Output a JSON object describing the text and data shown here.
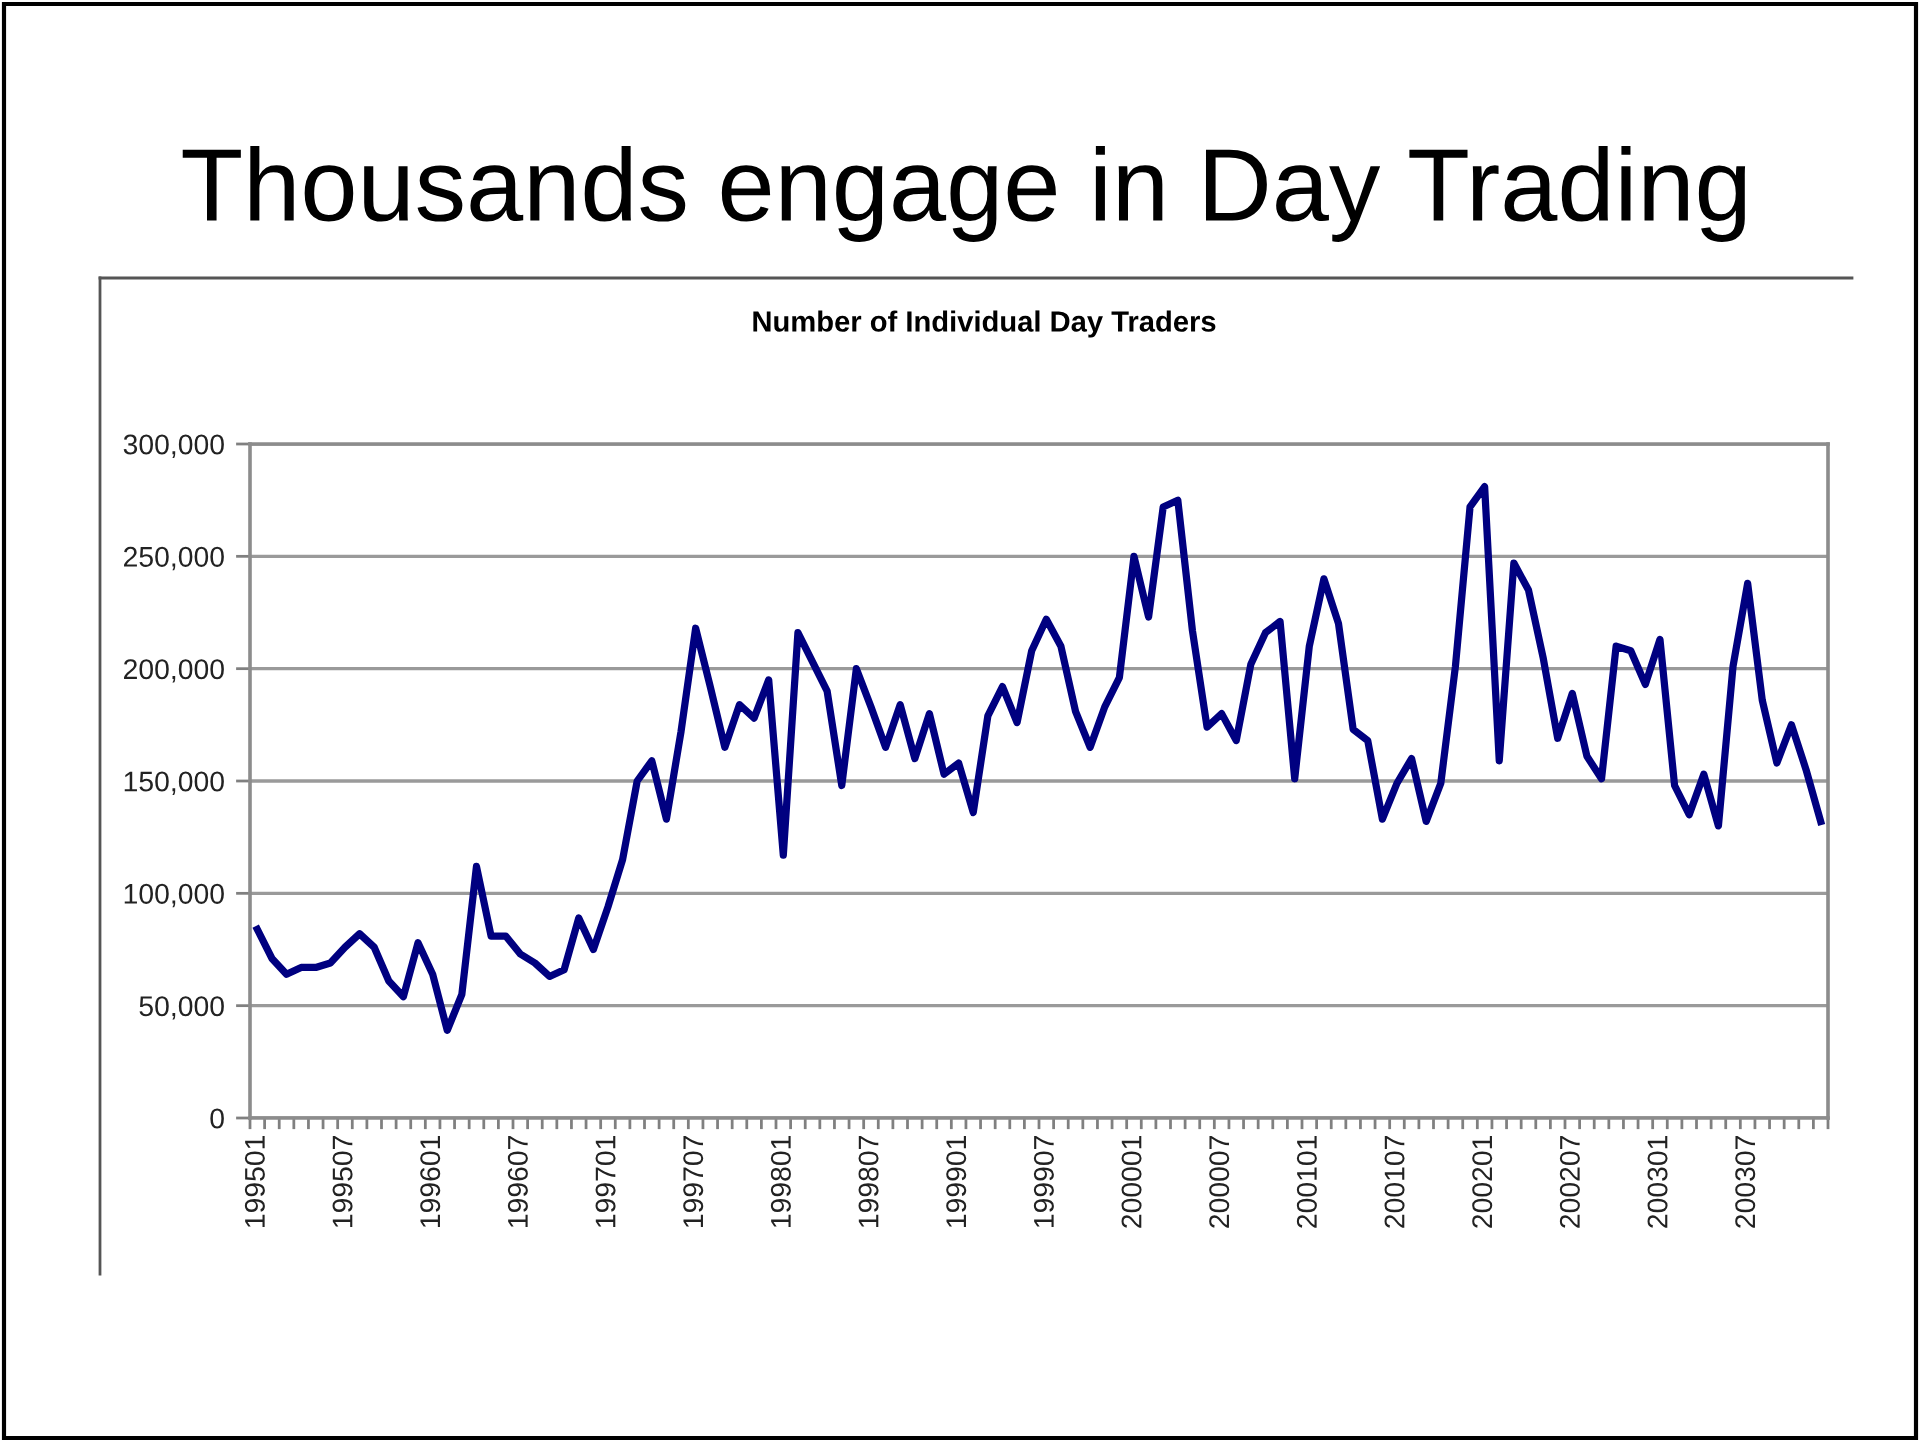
{
  "chart_data": {
    "type": "line",
    "title": "Thousands engage in Day Trading",
    "subtitle": "Number of Individual Day Traders",
    "categories": [
      "199501",
      null,
      null,
      null,
      null,
      null,
      "199507",
      null,
      null,
      null,
      null,
      null,
      "199601",
      null,
      null,
      null,
      null,
      null,
      "199607",
      null,
      null,
      null,
      null,
      null,
      "199701",
      null,
      null,
      null,
      null,
      null,
      "199707",
      null,
      null,
      null,
      null,
      null,
      "199801",
      null,
      null,
      null,
      null,
      null,
      "199807",
      null,
      null,
      null,
      null,
      null,
      "199901",
      null,
      null,
      null,
      null,
      null,
      "199907",
      null,
      null,
      null,
      null,
      null,
      "200001",
      null,
      null,
      null,
      null,
      null,
      "200007",
      null,
      null,
      null,
      null,
      null,
      "200101",
      null,
      null,
      null,
      null,
      null,
      "200107",
      null,
      null,
      null,
      null,
      null,
      "200201",
      null,
      null,
      null,
      null,
      null,
      "200207",
      null,
      null,
      null,
      null,
      null,
      "200301",
      null,
      null,
      null,
      null,
      null,
      "200307",
      null,
      null,
      null,
      null,
      null
    ],
    "series": [
      {
        "color": "#000080",
        "values": [
          84000,
          71000,
          64000,
          67000,
          67000,
          69000,
          76000,
          82000,
          76000,
          61000,
          54000,
          78000,
          64000,
          39000,
          55000,
          112000,
          81000,
          81000,
          73000,
          69000,
          63000,
          66000,
          89000,
          75000,
          94000,
          115000,
          150000,
          159000,
          133000,
          172000,
          218000,
          192000,
          165000,
          184000,
          178000,
          195000,
          117000,
          216000,
          203000,
          190000,
          148000,
          200000,
          183000,
          165000,
          184000,
          160000,
          180000,
          153000,
          158000,
          136000,
          179000,
          192000,
          176000,
          208000,
          222000,
          210000,
          181000,
          165000,
          183000,
          196000,
          250000,
          223000,
          272000,
          275000,
          217000,
          174000,
          180000,
          168000,
          202000,
          216000,
          221000,
          151000,
          210000,
          240000,
          220000,
          173000,
          168000,
          133000,
          149000,
          160000,
          132000,
          149000,
          201000,
          272000,
          281000,
          159000,
          247000,
          235000,
          205000,
          169000,
          189000,
          161000,
          151000,
          210000,
          208000,
          193000,
          213000,
          148000,
          135000,
          153000,
          130000,
          201000,
          238000,
          186000,
          158000,
          175000,
          155000,
          132000
        ]
      }
    ],
    "ylim": [
      0,
      300000
    ],
    "yticks": [
      0,
      {
        "value": 50000,
        "label": "50,000"
      },
      {
        "value": 100000,
        "label": "100,000"
      },
      {
        "value": 150000,
        "label": "150,000"
      },
      {
        "value": 200000,
        "label": "200,000"
      },
      {
        "value": 250000,
        "label": "250,000"
      },
      {
        "value": 300000,
        "label": "300,000"
      }
    ],
    "grid": "y",
    "marker": "none",
    "line_style": "solid"
  }
}
